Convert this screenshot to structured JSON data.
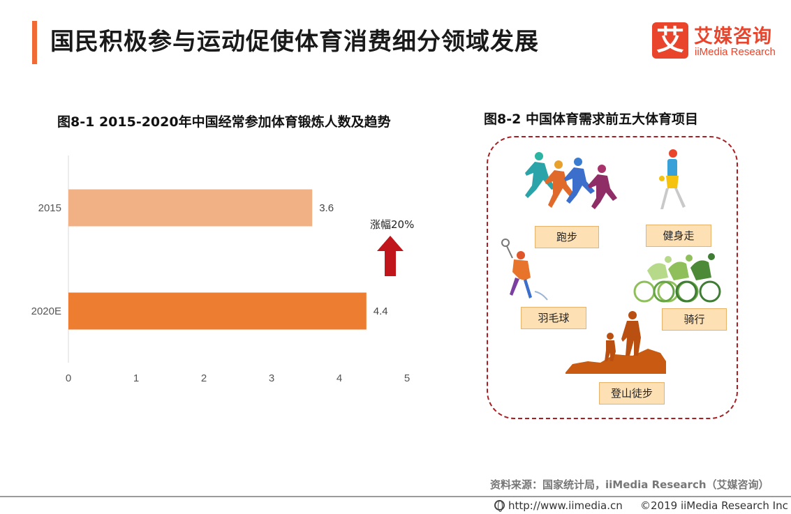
{
  "header": {
    "title": "国民积极参与运动促使体育消费细分领域发展",
    "logo_glyph": "艾",
    "logo_cn": "艾媒咨询",
    "logo_en": "iiMedia Research"
  },
  "left_title": "图8-1  2015-2020年中国经常参加体育锻炼人数及趋势",
  "right_title": "图8-2  中国体育需求前五大体育项目",
  "growth_label": "涨幅20%",
  "chart_data": {
    "type": "bar",
    "orientation": "horizontal",
    "title": "图8-1  2015-2020年中国经常参加体育锻炼人数及趋势",
    "categories": [
      "2015",
      "2020E"
    ],
    "values": [
      3.6,
      4.4
    ],
    "value_labels": [
      "3.6",
      "4.4"
    ],
    "bar_colors": [
      "#f2b185",
      "#ed7d31"
    ],
    "xlim": [
      0,
      5
    ],
    "x_ticks": [
      "0",
      "1",
      "2",
      "3",
      "4",
      "5"
    ],
    "grid": false,
    "annotation": "涨幅20%"
  },
  "sports": [
    "跑步",
    "健身走",
    "羽毛球",
    "骑行",
    "登山徒步"
  ],
  "footer": {
    "source": "资料来源：国家统计局，iiMedia Research（艾媒咨询）",
    "url": "http://www.iimedia.cn",
    "copyright": "©2019  iiMedia Research  Inc"
  }
}
